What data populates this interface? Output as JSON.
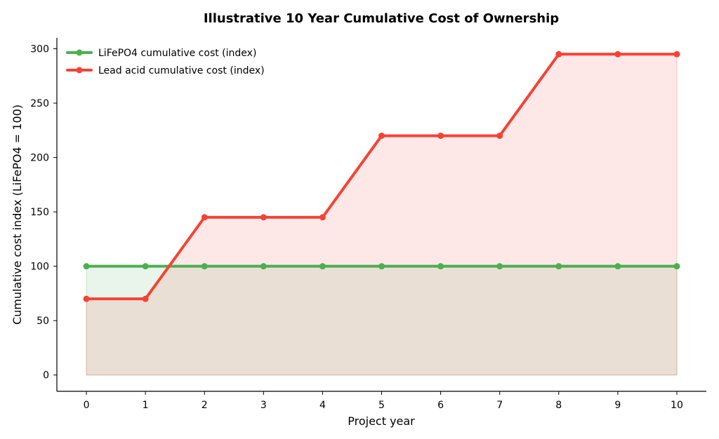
{
  "chart_data": {
    "type": "line",
    "title": "Illustrative 10 Year Cumulative Cost of Ownership",
    "xlabel": "Project year",
    "ylabel": "Cumulative cost index (LiFePO4 = 100)",
    "x": [
      0,
      1,
      2,
      3,
      4,
      5,
      6,
      7,
      8,
      9,
      10
    ],
    "xlim": [
      -0.5,
      10.5
    ],
    "ylim": [
      -15,
      310
    ],
    "x_ticks": [
      0,
      1,
      2,
      3,
      4,
      5,
      6,
      7,
      8,
      9,
      10
    ],
    "y_ticks": [
      0,
      50,
      100,
      150,
      200,
      250,
      300
    ],
    "grid": false,
    "legend_position": "top-left",
    "fill_to_zero": true,
    "series": [
      {
        "name": "LiFePO4 cumulative cost (index)",
        "color": "#4caf50",
        "fill_color": "#4caf50",
        "values": [
          100,
          100,
          100,
          100,
          100,
          100,
          100,
          100,
          100,
          100,
          100
        ]
      },
      {
        "name": "Lead acid cumulative cost (index)",
        "color": "#f44336",
        "fill_color": "#f44336",
        "values": [
          70,
          70,
          145,
          145,
          145,
          220,
          220,
          220,
          295,
          295,
          295
        ]
      }
    ]
  }
}
